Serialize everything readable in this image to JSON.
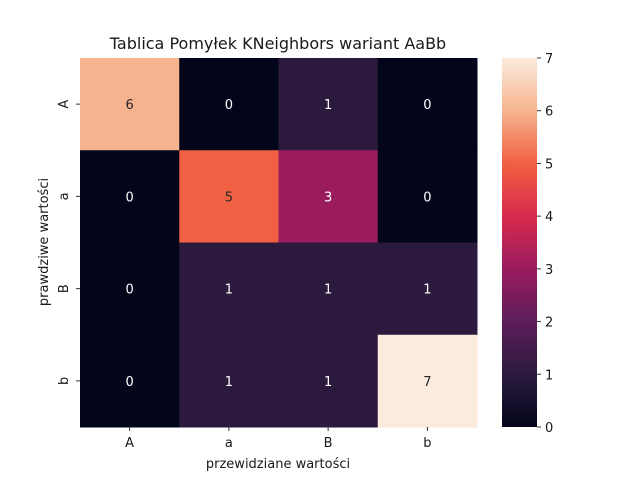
{
  "chart_data": {
    "type": "heatmap",
    "title": "Tablica Pomyłek KNeighbors wariant AaBb",
    "xlabel": "przewidziane wartości",
    "ylabel": "prawdziwe wartości",
    "x_categories": [
      "A",
      "a",
      "B",
      "b"
    ],
    "y_categories": [
      "A",
      "a",
      "B",
      "b"
    ],
    "values": [
      [
        6,
        0,
        1,
        0
      ],
      [
        0,
        5,
        3,
        0
      ],
      [
        0,
        1,
        1,
        1
      ],
      [
        0,
        1,
        1,
        7
      ]
    ],
    "colormap": "rocket",
    "vmin": 0,
    "vmax": 7,
    "colorbar_ticks": [
      0,
      1,
      2,
      3,
      4,
      5,
      6,
      7
    ],
    "annotations": true,
    "grid": false,
    "legend": "colorbar-right"
  }
}
